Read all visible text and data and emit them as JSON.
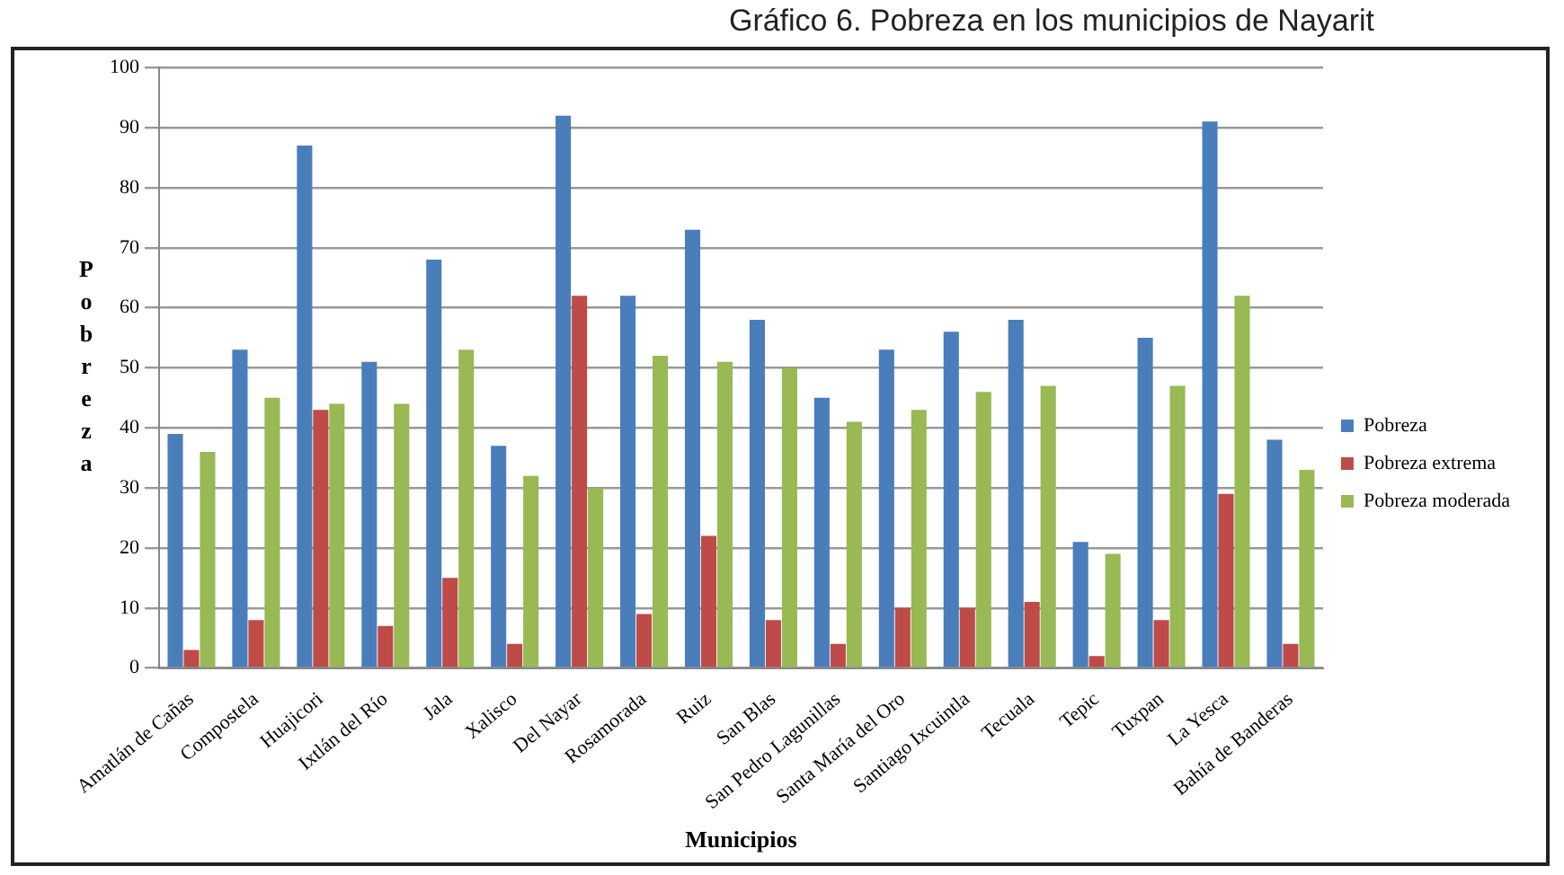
{
  "chart_data": {
    "type": "bar",
    "title": "Gráfico 6. Pobreza en los municipios de Nayarit",
    "xlabel": "Municipios",
    "ylabel": "Pobreza",
    "categories": [
      "Amatlán de Cañas",
      "Compostela",
      "Huajicori",
      "Ixtlán del Río",
      "Jala",
      "Xalisco",
      "Del Nayar",
      "Rosamorada",
      "Ruiz",
      "San Blas",
      "San Pedro Lagunillas",
      "Santa María del Oro",
      "Santiago Ixcuintla",
      "Tecuala",
      "Tepic",
      "Tuxpan",
      "La Yesca",
      "Bahía de Banderas"
    ],
    "series": [
      {
        "name": "Pobreza",
        "color": "#4a7ebb",
        "values": [
          39,
          53,
          87,
          51,
          68,
          37,
          92,
          62,
          73,
          58,
          45,
          53,
          56,
          58,
          21,
          55,
          91,
          38
        ]
      },
      {
        "name": "Pobreza extrema",
        "color": "#be4b48",
        "values": [
          3,
          8,
          43,
          7,
          15,
          4,
          62,
          9,
          22,
          8,
          4,
          10,
          10,
          11,
          2,
          8,
          29,
          4
        ]
      },
      {
        "name": "Pobreza moderada",
        "color": "#98b954",
        "values": [
          36,
          45,
          44,
          44,
          53,
          32,
          30,
          52,
          51,
          50,
          41,
          43,
          46,
          47,
          19,
          47,
          62,
          33
        ]
      }
    ],
    "ylim": [
      0,
      100
    ],
    "yticks": [
      0,
      10,
      20,
      30,
      40,
      50,
      60,
      70,
      80,
      90,
      100
    ],
    "grid": "y",
    "legend": "right"
  }
}
